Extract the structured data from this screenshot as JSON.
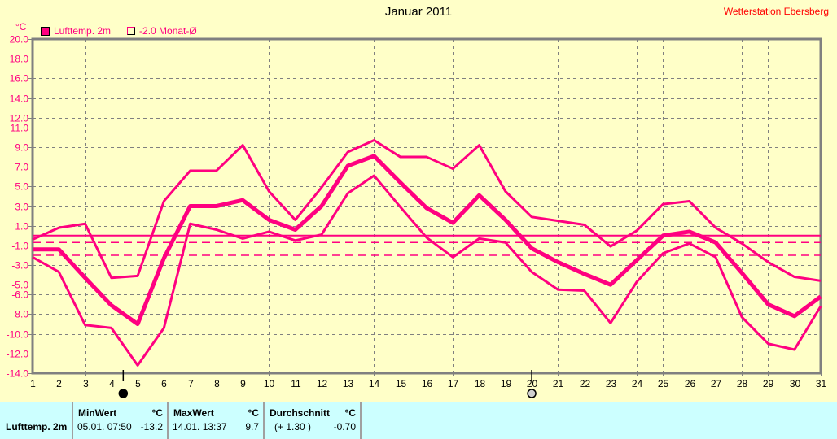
{
  "title": "Januar 2011",
  "station": "Wetterstation Ebersberg",
  "unit": "°C",
  "legend": {
    "series": "Lufttemp. 2m",
    "reference": "-2.0 Monat-Ø"
  },
  "colors": {
    "series": "#ff0080",
    "background": "#ffffc8",
    "grid": "#808080",
    "panel": "#ccffff",
    "station": "#ff0000"
  },
  "chart_data": {
    "type": "line",
    "title": "Januar 2011",
    "ylabel": "°C",
    "x": [
      1,
      2,
      3,
      4,
      5,
      6,
      7,
      8,
      9,
      10,
      11,
      12,
      13,
      14,
      15,
      16,
      17,
      18,
      19,
      20,
      21,
      22,
      23,
      24,
      25,
      26,
      27,
      28,
      29,
      30,
      31
    ],
    "ylim": [
      -14,
      20
    ],
    "yticks": [
      "20.0",
      "18.0",
      "16.0",
      "14.0",
      "12.0",
      "11.0",
      "9.0",
      "7.0",
      "5.0",
      "3.0",
      "1.0",
      "-1.0",
      "-3.0",
      "-5.0",
      "-6.0",
      "-8.0",
      "-10.0",
      "-12.0",
      "-14.0"
    ],
    "ytick_values": [
      20,
      18,
      16,
      14,
      12,
      11,
      9,
      7,
      5,
      3,
      1,
      -1,
      -3,
      -5,
      -6,
      -8,
      -10,
      -12,
      -14
    ],
    "grid": true,
    "series": [
      {
        "name": "Lufttemp. 2m max",
        "width": "thin",
        "values": [
          -0.4,
          0.8,
          1.2,
          -4.3,
          -4.1,
          3.5,
          6.6,
          6.6,
          9.2,
          4.5,
          1.6,
          4.9,
          8.5,
          9.7,
          8.0,
          8.0,
          6.8,
          9.2,
          4.5,
          1.9,
          1.5,
          1.1,
          -1.1,
          0.5,
          3.2,
          3.5,
          0.8,
          -0.8,
          -2.7,
          -4.2,
          -4.6
        ]
      },
      {
        "name": "Lufttemp. 2m mittel",
        "width": "thick",
        "values": [
          -1.4,
          -1.4,
          -4.3,
          -7.1,
          -9.0,
          -2.3,
          3.0,
          3.0,
          3.6,
          1.6,
          0.6,
          3.0,
          7.1,
          8.1,
          5.4,
          2.8,
          1.3,
          4.1,
          1.6,
          -1.3,
          -2.7,
          -3.9,
          -5.0,
          -2.5,
          0.0,
          0.4,
          -0.7,
          -3.8,
          -7.0,
          -8.2,
          -6.2
        ]
      },
      {
        "name": "Lufttemp. 2m min",
        "width": "thin",
        "values": [
          -2.2,
          -3.7,
          -9.1,
          -9.4,
          -13.2,
          -9.4,
          1.2,
          0.6,
          -0.3,
          0.4,
          -0.5,
          0.1,
          4.3,
          6.1,
          2.9,
          -0.2,
          -2.2,
          -0.3,
          -0.7,
          -3.7,
          -5.5,
          -5.6,
          -8.9,
          -4.7,
          -1.8,
          -0.8,
          -2.2,
          -8.3,
          -11.0,
          -11.6,
          -7.2
        ]
      }
    ],
    "reference_lines": [
      {
        "name": "zero",
        "value": 0.0,
        "style": "solid"
      },
      {
        "name": "Durchschnitt",
        "value": -0.7,
        "style": "dashed"
      },
      {
        "name": "Monat-Ø",
        "value": -2.0,
        "style": "dashed"
      }
    ],
    "moon_phases": [
      {
        "day": 4.45,
        "phase": "new-moon"
      },
      {
        "day": 20,
        "phase": "full-moon"
      }
    ]
  },
  "stats": {
    "row_label": "Lufttemp. 2m",
    "min": {
      "header": "MinWert",
      "unit": "°C",
      "time": "05.01.  07:50",
      "value": "-13.2"
    },
    "max": {
      "header": "MaxWert",
      "unit": "°C",
      "time": "14.01.  13:37",
      "value": "9.7"
    },
    "avg": {
      "header": "Durchschnitt",
      "unit": "°C",
      "deviation": "(+ 1.30 )",
      "value": "-0.70"
    }
  }
}
